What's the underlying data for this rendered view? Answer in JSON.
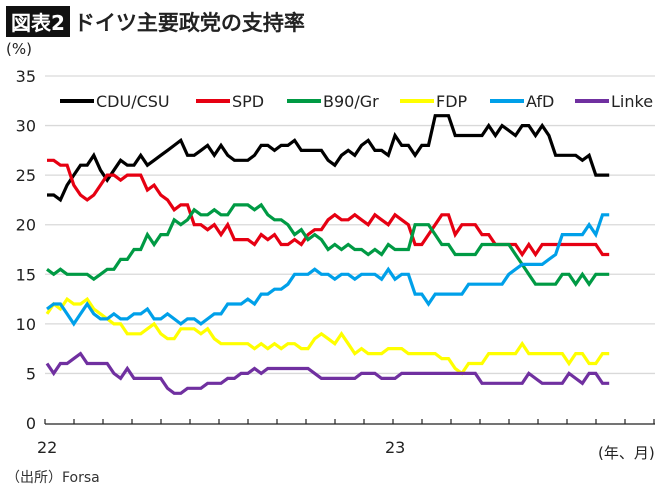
{
  "header": {
    "badge": "図表2",
    "title": "ドイツ主要政党の支持率"
  },
  "source": "（出所）Forsa",
  "chart_data": {
    "type": "line",
    "ylabel": "(%)",
    "xlabel": "(年、月)",
    "ylim": [
      0,
      35
    ],
    "yticks": [
      0,
      5,
      10,
      15,
      20,
      25,
      30,
      35
    ],
    "x_tick_labels": [
      {
        "label": "22",
        "month": "2022-01"
      },
      {
        "label": "23",
        "month": "2023-01"
      }
    ],
    "x_range": [
      "2022-01",
      "2023-09"
    ],
    "x_start": "2022-01",
    "x_step": "weekly",
    "grid": true,
    "legend_position": "top",
    "series": [
      {
        "name": "CDU/CSU",
        "color": "#000000",
        "values": [
          23,
          23,
          22.5,
          24,
          25,
          26,
          26,
          27,
          25.5,
          24.5,
          25.5,
          26.5,
          26,
          26,
          27,
          26,
          26.5,
          27,
          27.5,
          28,
          28.5,
          27,
          27,
          27.5,
          28,
          27,
          28,
          27,
          26.5,
          26.5,
          26.5,
          27,
          28,
          28,
          27.5,
          28,
          28,
          28.5,
          27.5,
          27.5,
          27.5,
          27.5,
          26.5,
          26,
          27,
          27.5,
          27,
          28,
          28.5,
          27.5,
          27.5,
          27,
          29,
          28,
          28,
          27,
          28,
          28,
          31,
          31,
          31,
          29,
          29,
          29,
          29,
          29,
          30,
          29,
          30,
          29.5,
          29,
          30,
          30,
          29,
          30,
          29,
          27,
          27,
          27,
          27,
          26.5,
          27,
          25,
          25,
          25
        ]
      },
      {
        "name": "SPD",
        "color": "#e60012",
        "values": [
          26.5,
          26.5,
          26,
          26,
          24,
          23,
          22.5,
          23,
          24,
          25,
          25,
          24.5,
          25,
          25,
          25,
          23.5,
          24,
          23,
          22.5,
          21.5,
          22,
          22,
          20,
          20,
          19.5,
          20,
          19,
          20,
          18.5,
          18.5,
          18.5,
          18,
          19,
          18.5,
          19,
          18,
          18,
          18.5,
          18,
          19,
          19.5,
          19.5,
          20.5,
          21,
          20.5,
          20.5,
          21,
          20.5,
          20,
          21,
          20.5,
          20,
          21,
          20.5,
          20,
          18,
          18,
          19,
          20,
          21,
          21,
          19,
          20,
          20,
          20,
          19,
          19,
          18,
          18,
          18,
          18,
          17,
          18,
          17,
          18,
          18,
          18,
          18,
          18,
          18,
          18,
          18,
          18,
          17,
          17
        ]
      },
      {
        "name": "B90/Gr",
        "color": "#009a44",
        "values": [
          15.5,
          15,
          15.5,
          15,
          15,
          15,
          15,
          14.5,
          15,
          15.5,
          15.5,
          16.5,
          16.5,
          17.5,
          17.5,
          19,
          18,
          19,
          19,
          20.5,
          20,
          20.5,
          21.5,
          21,
          21,
          21.5,
          21,
          21,
          22,
          22,
          22,
          21.5,
          22,
          21,
          20.5,
          20.5,
          20,
          19,
          19.5,
          18.5,
          19,
          18.5,
          17.5,
          18,
          17.5,
          18,
          17.5,
          17.5,
          17,
          17.5,
          17,
          18,
          17.5,
          17.5,
          17.5,
          20,
          20,
          20,
          19,
          18,
          18,
          17,
          17,
          17,
          17,
          18,
          18,
          18,
          18,
          18,
          17,
          16,
          15,
          14,
          14,
          14,
          14,
          15,
          15,
          14,
          15,
          14,
          15,
          15,
          15
        ]
      },
      {
        "name": "FDP",
        "color": "#ffff00",
        "values": [
          11,
          12,
          11.5,
          12.5,
          12,
          12,
          12.5,
          11.5,
          11,
          10.5,
          10,
          10,
          9,
          9,
          9,
          9.5,
          10,
          9,
          8.5,
          8.5,
          9.5,
          9.5,
          9.5,
          9,
          9.5,
          8.5,
          8,
          8,
          8,
          8,
          8,
          7.5,
          8,
          7.5,
          8,
          7.5,
          8,
          8,
          7.5,
          7.5,
          8.5,
          9,
          8.5,
          8,
          9,
          8,
          7,
          7.5,
          7,
          7,
          7,
          7.5,
          7.5,
          7.5,
          7,
          7,
          7,
          7,
          7,
          6.5,
          6.5,
          5.5,
          5,
          6,
          6,
          6,
          7,
          7,
          7,
          7,
          7,
          8,
          7,
          7,
          7,
          7,
          7,
          7,
          6,
          7,
          7,
          6,
          6,
          7,
          7
        ]
      },
      {
        "name": "AfD",
        "color": "#00a0e9",
        "values": [
          11.5,
          12,
          12,
          11,
          10,
          11,
          12,
          11,
          10.5,
          10.5,
          11,
          10.5,
          10.5,
          11,
          11,
          11.5,
          10.5,
          10.5,
          11,
          10.5,
          10,
          10.5,
          10.5,
          10,
          10.5,
          11,
          11,
          12,
          12,
          12,
          12.5,
          12,
          13,
          13,
          13.5,
          13.5,
          14,
          15,
          15,
          15,
          15.5,
          15,
          15,
          14.5,
          15,
          15,
          14.5,
          15,
          15,
          15,
          14.5,
          15.5,
          14.5,
          15,
          15,
          13,
          13,
          12,
          13,
          13,
          13,
          13,
          13,
          14,
          14,
          14,
          14,
          14,
          14,
          15,
          15.5,
          16,
          16,
          16,
          16,
          16.5,
          17,
          19,
          19,
          19,
          19,
          20,
          19,
          21,
          21
        ]
      },
      {
        "name": "Linke",
        "color": "#7030a0",
        "values": [
          6,
          5,
          6,
          6,
          6.5,
          7,
          6,
          6,
          6,
          6,
          5,
          4.5,
          5.5,
          4.5,
          4.5,
          4.5,
          4.5,
          4.5,
          3.5,
          3,
          3,
          3.5,
          3.5,
          3.5,
          4,
          4,
          4,
          4.5,
          4.5,
          5,
          5,
          5.5,
          5,
          5.5,
          5.5,
          5.5,
          5.5,
          5.5,
          5.5,
          5.5,
          5,
          4.5,
          4.5,
          4.5,
          4.5,
          4.5,
          4.5,
          5,
          5,
          5,
          4.5,
          4.5,
          4.5,
          5,
          5,
          5,
          5,
          5,
          5,
          5,
          5,
          5,
          5,
          5,
          5,
          4,
          4,
          4,
          4,
          4,
          4,
          4,
          5,
          4.5,
          4,
          4,
          4,
          4,
          5,
          4.5,
          4,
          5,
          5,
          4,
          4
        ]
      }
    ]
  }
}
